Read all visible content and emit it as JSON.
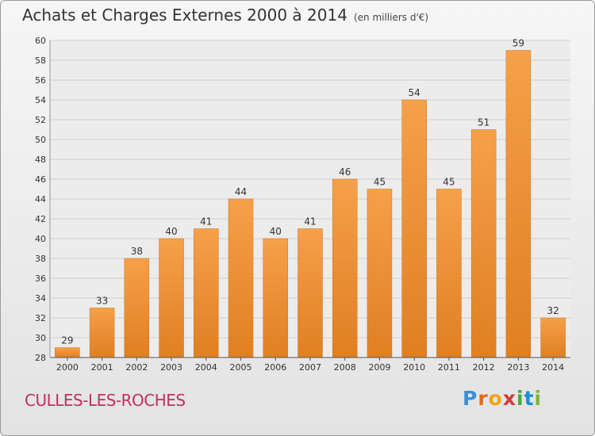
{
  "header": {
    "title": "Achats et Charges Externes 2000 à 2014",
    "subtitle": "(en milliers d'€)"
  },
  "footer": {
    "place": "CULLES-LES-ROCHES",
    "logo_letters": [
      "P",
      "r",
      "o",
      "x",
      "i",
      "t",
      "i"
    ],
    "logo_colors": [
      "#3a8fd6",
      "#e36a1a",
      "#f2a313",
      "#d33a3a",
      "#4aa83a",
      "#1a8fd6",
      "#7ab934"
    ]
  },
  "chart_data": {
    "type": "bar",
    "title": "Achats et Charges Externes 2000 à 2014",
    "subtitle": "(en milliers d'€)",
    "categories": [
      "2000",
      "2001",
      "2002",
      "2003",
      "2004",
      "2005",
      "2006",
      "2007",
      "2008",
      "2009",
      "2010",
      "2011",
      "2012",
      "2013",
      "2014"
    ],
    "values": [
      29,
      33,
      38,
      40,
      41,
      44,
      40,
      41,
      46,
      45,
      54,
      45,
      51,
      59,
      32
    ],
    "ylim": [
      28,
      60
    ],
    "yticks": [
      28,
      30,
      32,
      34,
      36,
      38,
      40,
      42,
      44,
      46,
      48,
      50,
      52,
      54,
      56,
      58,
      60
    ],
    "grid": true,
    "bar_color_top": "#f5a04a",
    "bar_color_bottom": "#e07f22"
  }
}
